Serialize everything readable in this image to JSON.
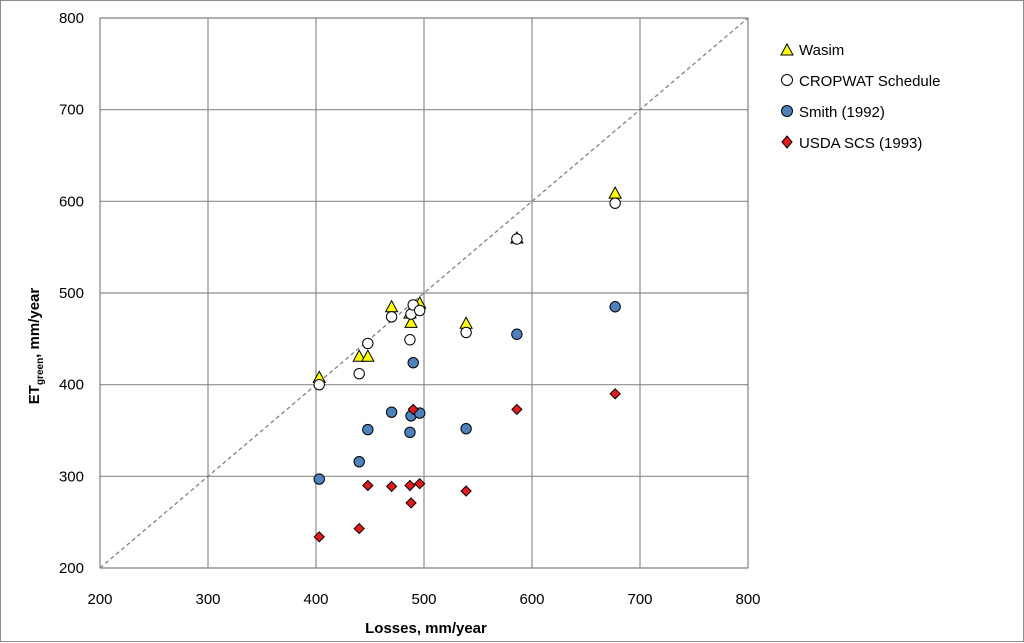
{
  "chart_data": {
    "type": "scatter",
    "xlabel": "Losses, mm/year",
    "ylabel_main": "ET",
    "ylabel_sub": "green",
    "ylabel_rest": ", mm/year",
    "xlim": [
      200,
      800
    ],
    "ylim": [
      200,
      800
    ],
    "xticks": [
      "200",
      "300",
      "400",
      "500",
      "600",
      "700",
      "800"
    ],
    "yticks": [
      "200",
      "300",
      "400",
      "500",
      "600",
      "700",
      "800"
    ],
    "grid": true,
    "legend_position": "top-right",
    "reference_line": "1:1 dashed",
    "series": [
      {
        "name": "Wasim",
        "marker": "triangle",
        "color": "#ffff00",
        "points": [
          [
            403,
            408
          ],
          [
            440,
            431
          ],
          [
            448,
            431
          ],
          [
            470,
            485
          ],
          [
            487,
            478
          ],
          [
            488,
            468
          ],
          [
            490,
            484
          ],
          [
            496,
            489
          ],
          [
            539,
            467
          ],
          [
            586,
            560
          ],
          [
            677,
            609
          ]
        ]
      },
      {
        "name": "CROPWAT Schedule",
        "marker": "circle-open",
        "color": "#ffffff",
        "points": [
          [
            403,
            400
          ],
          [
            440,
            412
          ],
          [
            448,
            445
          ],
          [
            470,
            474
          ],
          [
            487,
            449
          ],
          [
            488,
            477
          ],
          [
            490,
            487
          ],
          [
            496,
            481
          ],
          [
            539,
            457
          ],
          [
            586,
            559
          ],
          [
            677,
            598
          ]
        ]
      },
      {
        "name": "Smith (1992)",
        "marker": "circle",
        "color": "#4f81bd",
        "points": [
          [
            403,
            297
          ],
          [
            440,
            316
          ],
          [
            448,
            351
          ],
          [
            470,
            370
          ],
          [
            487,
            348
          ],
          [
            488,
            366
          ],
          [
            490,
            424
          ],
          [
            496,
            369
          ],
          [
            539,
            352
          ],
          [
            586,
            455
          ],
          [
            677,
            485
          ]
        ]
      },
      {
        "name": "USDA SCS (1993)",
        "marker": "diamond",
        "color": "#e31a1c",
        "points": [
          [
            403,
            234
          ],
          [
            440,
            243
          ],
          [
            448,
            290
          ],
          [
            470,
            289
          ],
          [
            487,
            290
          ],
          [
            488,
            271
          ],
          [
            490,
            373
          ],
          [
            496,
            292
          ],
          [
            539,
            284
          ],
          [
            586,
            373
          ],
          [
            677,
            390
          ]
        ]
      }
    ]
  }
}
